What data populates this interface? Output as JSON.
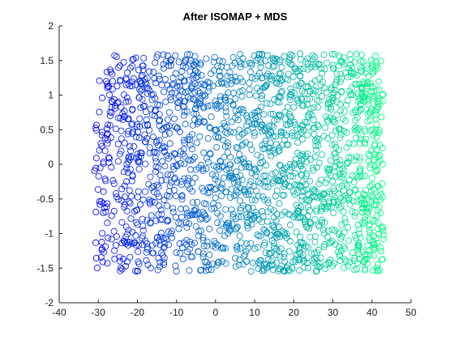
{
  "chart_data": {
    "type": "scatter",
    "title": "After ISOMAP + MDS",
    "xlabel": "",
    "ylabel": "",
    "xlim": [
      -40,
      50
    ],
    "ylim": [
      -2,
      2
    ],
    "xticks": [
      -40,
      -30,
      -20,
      -10,
      0,
      10,
      20,
      30,
      40,
      50
    ],
    "yticks": [
      -2,
      -1.5,
      -1,
      -0.5,
      0,
      0.5,
      1,
      1.5,
      2
    ],
    "xtick_labels": [
      "-40",
      "-30",
      "-20",
      "-10",
      "0",
      "10",
      "20",
      "30",
      "40",
      "50"
    ],
    "ytick_labels": [
      "-2",
      "-1.5",
      "-1",
      "-0.5",
      "0",
      "0.5",
      "1",
      "1.5",
      "2"
    ],
    "grid": false,
    "legend": false,
    "marker": "open-circle",
    "point_count": 2000,
    "data_extent": {
      "x": [
        -31,
        43
      ],
      "y": [
        -1.55,
        1.6
      ]
    },
    "color_gradient": {
      "start": "#0000ff",
      "end": "#00ff80",
      "mapped_to": "x"
    },
    "axis_color": "#262626",
    "background": "#ffffff"
  }
}
